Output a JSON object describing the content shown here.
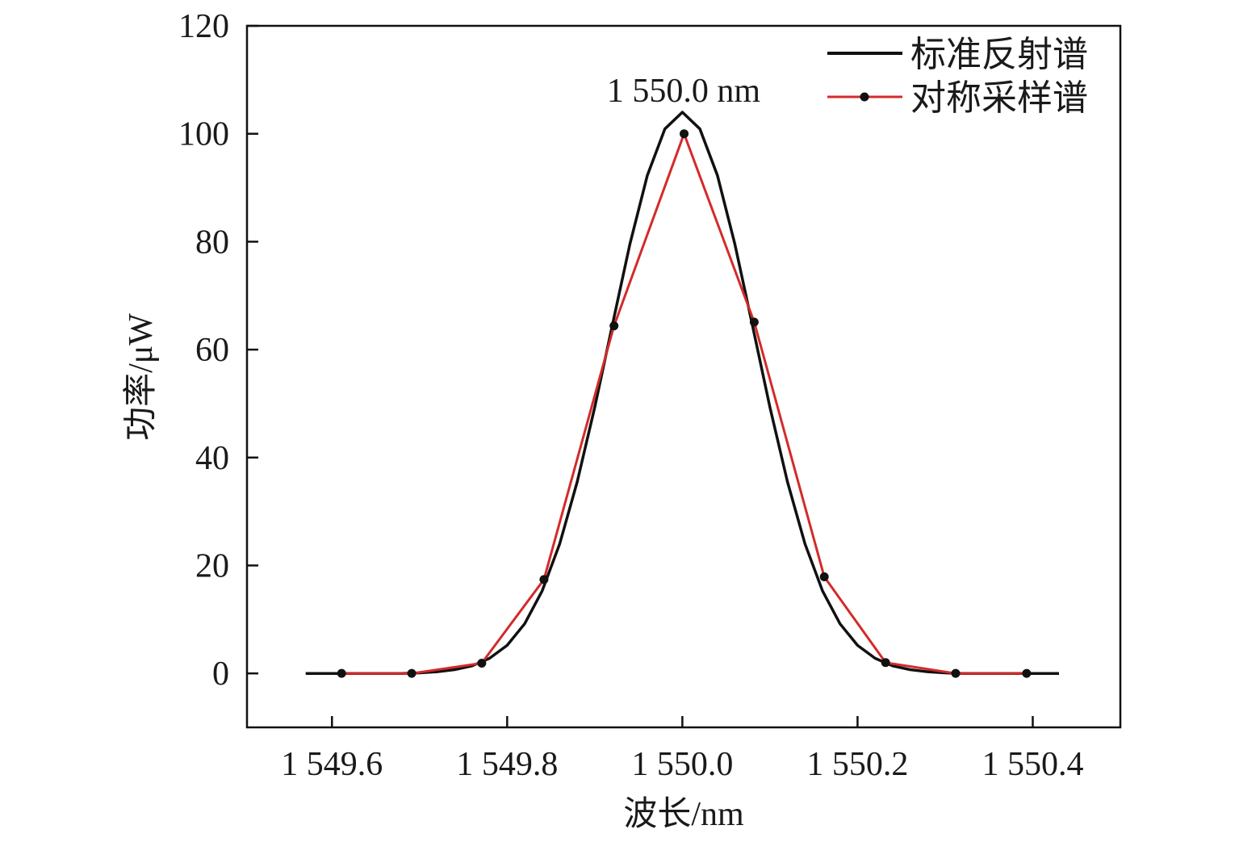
{
  "chart_data": {
    "type": "line",
    "title": "",
    "xlabel": "波长/nm",
    "ylabel": "功率/μW",
    "xlim": [
      1549.503,
      1550.5
    ],
    "ylim": [
      -10,
      120
    ],
    "xticks": [
      1549.6,
      1549.8,
      1550.0,
      1550.2,
      1550.4
    ],
    "xtick_labels": [
      "1 549.6",
      "1 549.8",
      "1 550.0",
      "1 550.2",
      "1 550.4"
    ],
    "yticks": [
      0,
      20,
      40,
      60,
      80,
      100,
      120
    ],
    "ytick_labels": [
      "0",
      "20",
      "40",
      "60",
      "80",
      "100",
      "120"
    ],
    "grid": false,
    "legend_position": "top-right",
    "annotations": [
      {
        "text": "1 550.0 nm",
        "x": 1550.0,
        "y": 108
      }
    ],
    "series": [
      {
        "name": "标准反射谱",
        "color": "#111111",
        "markers": false,
        "x": [
          1549.57,
          1549.6,
          1549.62,
          1549.64,
          1549.66,
          1549.68,
          1549.7,
          1549.72,
          1549.74,
          1549.76,
          1549.78,
          1549.8,
          1549.82,
          1549.84,
          1549.86,
          1549.88,
          1549.9,
          1549.92,
          1549.94,
          1549.96,
          1549.98,
          1550.0,
          1550.02,
          1550.04,
          1550.06,
          1550.08,
          1550.1,
          1550.12,
          1550.14,
          1550.16,
          1550.18,
          1550.2,
          1550.22,
          1550.24,
          1550.26,
          1550.28,
          1550.3,
          1550.32,
          1550.34,
          1550.36,
          1550.38,
          1550.4,
          1550.43
        ],
        "y": [
          0,
          0,
          0,
          0,
          0,
          0,
          0.1,
          0.3,
          0.7,
          1.4,
          2.8,
          5.2,
          9.2,
          15.3,
          24.0,
          35.5,
          49.3,
          64.5,
          79.5,
          92.3,
          100.9,
          104,
          100.9,
          92.3,
          79.5,
          64.5,
          49.3,
          35.5,
          24.0,
          15.3,
          9.2,
          5.2,
          2.8,
          1.4,
          0.7,
          0.3,
          0.1,
          0,
          0,
          0,
          0,
          0,
          0
        ]
      },
      {
        "name": "对称采样谱",
        "color": "#d42a2a",
        "markers": true,
        "marker_color": "#111111",
        "x": [
          1549.611,
          1549.691,
          1549.771,
          1549.842,
          1549.922,
          1550.002,
          1550.082,
          1550.162,
          1550.232,
          1550.312,
          1550.393
        ],
        "y": [
          0,
          0,
          1.9,
          17.4,
          64.4,
          100,
          65.1,
          17.9,
          2.0,
          0,
          0
        ]
      }
    ]
  }
}
